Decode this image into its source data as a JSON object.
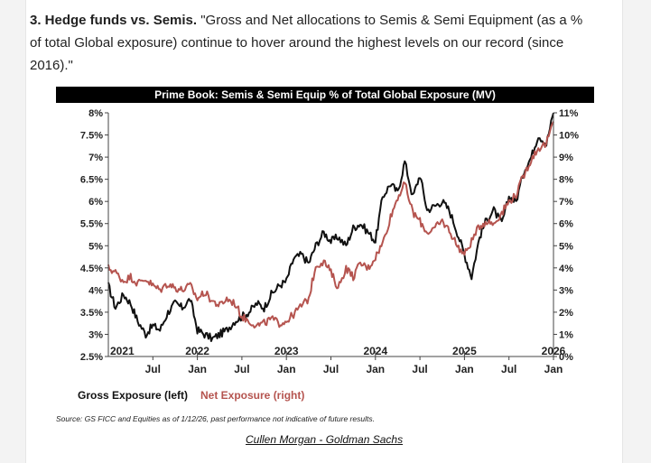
{
  "intro": {
    "heading": "3. Hedge funds vs. Semis.",
    "quote": "\"Gross and Net allocations to Semis & Semi Equipment (as a % of total Global exposure) continue to hover around the highest levels on our record (since 2016).\""
  },
  "chart_data": {
    "type": "line",
    "title": "Prime Book: Semis & Semi Equip % of Total Global Exposure (MV)",
    "left_axis": {
      "range": [
        2.5,
        8
      ],
      "ticks": [
        "2.5%",
        "3%",
        "3.5%",
        "4%",
        "4.5%",
        "5%",
        "5.5%",
        "6%",
        "6.5%",
        "7%",
        "7.5%",
        "8%"
      ],
      "tick_values": [
        2.5,
        3,
        3.5,
        4,
        4.5,
        5,
        5.5,
        6,
        6.5,
        7,
        7.5,
        8
      ]
    },
    "right_axis": {
      "range": [
        0,
        11
      ],
      "ticks": [
        "0%",
        "1%",
        "2%",
        "3%",
        "4%",
        "5%",
        "6%",
        "7%",
        "8%",
        "9%",
        "10%",
        "11%"
      ],
      "tick_values": [
        0,
        1,
        2,
        3,
        4,
        5,
        6,
        7,
        8,
        9,
        10,
        11
      ]
    },
    "x_axis": {
      "range": [
        2021.0,
        2026.0
      ],
      "year_labels": [
        {
          "x": 2021.0,
          "label": "2021"
        },
        {
          "x": 2022.0,
          "label": "2022"
        },
        {
          "x": 2023.0,
          "label": "2023"
        },
        {
          "x": 2024.0,
          "label": "2024"
        },
        {
          "x": 2025.0,
          "label": "2025"
        },
        {
          "x": 2026.0,
          "label": "2026"
        }
      ],
      "month_labels": [
        {
          "x": 2021.5,
          "label": "Jul"
        },
        {
          "x": 2022.0,
          "label": "Jan"
        },
        {
          "x": 2022.5,
          "label": "Jul"
        },
        {
          "x": 2023.0,
          "label": "Jan"
        },
        {
          "x": 2023.5,
          "label": "Jul"
        },
        {
          "x": 2024.0,
          "label": "Jan"
        },
        {
          "x": 2024.5,
          "label": "Jul"
        },
        {
          "x": 2025.0,
          "label": "Jan"
        },
        {
          "x": 2025.5,
          "label": "Jul"
        },
        {
          "x": 2026.0,
          "label": "Jan"
        }
      ]
    },
    "legend": [
      {
        "name": "Gross Exposure (left)",
        "color": "#111111"
      },
      {
        "name": "Net Exposure (right)",
        "color": "#b5544f"
      }
    ],
    "series": [
      {
        "name": "Gross Exposure (left)",
        "axis": "left",
        "color": "#111111",
        "x": [
          2021.0,
          2021.08,
          2021.17,
          2021.25,
          2021.33,
          2021.42,
          2021.5,
          2021.58,
          2021.67,
          2021.75,
          2021.83,
          2021.92,
          2022.0,
          2022.08,
          2022.17,
          2022.25,
          2022.33,
          2022.42,
          2022.5,
          2022.58,
          2022.67,
          2022.75,
          2022.83,
          2022.92,
          2023.0,
          2023.08,
          2023.17,
          2023.25,
          2023.33,
          2023.42,
          2023.5,
          2023.58,
          2023.67,
          2023.75,
          2023.83,
          2023.92,
          2024.0,
          2024.08,
          2024.17,
          2024.25,
          2024.33,
          2024.42,
          2024.5,
          2024.58,
          2024.67,
          2024.75,
          2024.83,
          2024.92,
          2025.0,
          2025.08,
          2025.17,
          2025.25,
          2025.33,
          2025.42,
          2025.5,
          2025.58,
          2025.67,
          2025.75,
          2025.83,
          2025.92,
          2026.0
        ],
        "values": [
          4.1,
          3.6,
          3.9,
          3.7,
          3.3,
          3.0,
          3.2,
          3.1,
          3.5,
          3.7,
          3.6,
          3.8,
          3.1,
          3.0,
          2.9,
          3.0,
          3.1,
          3.3,
          3.4,
          3.5,
          3.7,
          3.6,
          3.9,
          4.1,
          4.2,
          4.7,
          4.8,
          4.6,
          5.0,
          5.3,
          5.1,
          5.2,
          5.0,
          5.4,
          5.5,
          5.3,
          5.1,
          6.1,
          6.4,
          6.2,
          6.9,
          6.1,
          6.6,
          5.8,
          5.9,
          6.0,
          5.8,
          5.3,
          4.8,
          4.3,
          5.2,
          5.6,
          5.8,
          5.5,
          6.1,
          6.0,
          6.7,
          7.0,
          7.5,
          7.3,
          8.0
        ]
      },
      {
        "name": "Net Exposure (right)",
        "axis": "right",
        "color": "#b5544f",
        "x": [
          2021.0,
          2021.08,
          2021.17,
          2021.25,
          2021.33,
          2021.42,
          2021.5,
          2021.58,
          2021.67,
          2021.75,
          2021.83,
          2021.92,
          2022.0,
          2022.08,
          2022.17,
          2022.25,
          2022.33,
          2022.42,
          2022.5,
          2022.58,
          2022.67,
          2022.75,
          2022.83,
          2022.92,
          2023.0,
          2023.08,
          2023.17,
          2023.25,
          2023.33,
          2023.42,
          2023.5,
          2023.58,
          2023.67,
          2023.75,
          2023.83,
          2023.92,
          2024.0,
          2024.08,
          2024.17,
          2024.25,
          2024.33,
          2024.42,
          2024.5,
          2024.58,
          2024.67,
          2024.75,
          2024.83,
          2024.92,
          2025.0,
          2025.08,
          2025.17,
          2025.25,
          2025.33,
          2025.42,
          2025.5,
          2025.58,
          2025.67,
          2025.75,
          2025.83,
          2025.92,
          2026.0
        ],
        "values": [
          4.0,
          3.8,
          3.4,
          3.6,
          3.3,
          3.5,
          3.2,
          3.0,
          3.3,
          3.1,
          3.0,
          3.2,
          2.6,
          2.9,
          2.5,
          2.3,
          2.6,
          2.4,
          1.8,
          1.6,
          1.4,
          1.5,
          1.7,
          1.5,
          1.6,
          1.9,
          2.3,
          2.6,
          4.1,
          4.3,
          3.8,
          3.1,
          4.0,
          3.6,
          4.2,
          4.0,
          4.5,
          5.1,
          6.3,
          7.2,
          7.8,
          6.5,
          6.1,
          5.6,
          5.8,
          6.1,
          5.7,
          5.0,
          4.6,
          5.2,
          5.9,
          6.1,
          6.0,
          6.5,
          7.0,
          7.3,
          8.2,
          8.9,
          9.4,
          9.6,
          10.6
        ]
      }
    ]
  },
  "source": "Source: GS FICC and Equities as of 1/12/26, past performance not indicative of future results.",
  "credit": "Cullen Morgan - Goldman Sachs"
}
